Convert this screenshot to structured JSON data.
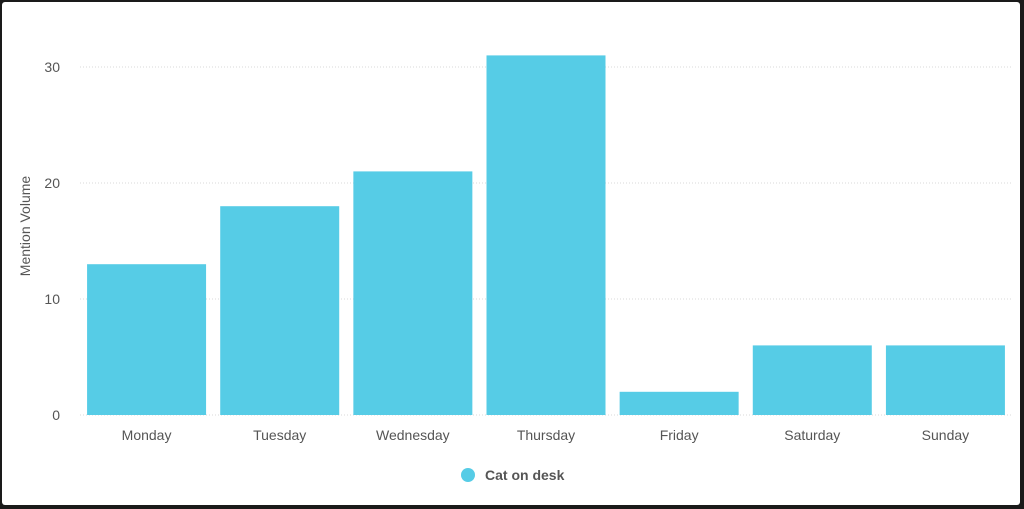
{
  "chart_data": {
    "type": "bar",
    "categories": [
      "Monday",
      "Tuesday",
      "Wednesday",
      "Thursday",
      "Friday",
      "Saturday",
      "Sunday"
    ],
    "series": [
      {
        "name": "Cat on desk",
        "values": [
          13,
          18,
          21,
          31,
          2,
          6,
          6
        ],
        "color": "#56CCE6"
      }
    ],
    "ylabel": "Mention Volume",
    "xlabel": "",
    "ylim": [
      0,
      35
    ],
    "yticks": [
      0,
      10,
      20,
      30
    ],
    "grid": true,
    "legend": "bottom-center"
  }
}
